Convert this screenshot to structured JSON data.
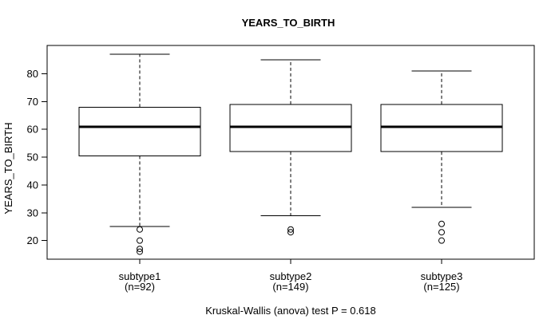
{
  "chart_data": {
    "type": "boxplot",
    "title": "YEARS_TO_BIRTH",
    "ylabel": "YEARS_TO_BIRTH",
    "caption": "Kruskal-Wallis (anova) test P = 0.618",
    "yticks": [
      20,
      30,
      40,
      50,
      60,
      70,
      80
    ],
    "ylim": [
      13.3,
      90.2
    ],
    "grid": false,
    "legend": "none",
    "colors": {
      "stroke": "#000000",
      "box_fill": "#ffffff",
      "background": "#ffffff"
    },
    "groups": [
      {
        "label": "subtype1",
        "sublabel": "(n=92)",
        "n": 92,
        "whisker_low": 25,
        "q1": 50.5,
        "median": 61,
        "q3": 68,
        "whisker_high": 87,
        "outliers": [
          24,
          20,
          17,
          16
        ]
      },
      {
        "label": "subtype2",
        "sublabel": "(n=149)",
        "n": 149,
        "whisker_low": 29,
        "q1": 52,
        "median": 61,
        "q3": 69,
        "whisker_high": 85,
        "outliers": [
          24,
          23
        ]
      },
      {
        "label": "subtype3",
        "sublabel": "(n=125)",
        "n": 125,
        "whisker_low": 32,
        "q1": 52,
        "median": 61,
        "q3": 69,
        "whisker_high": 81,
        "outliers": [
          26,
          23,
          20
        ]
      }
    ]
  }
}
